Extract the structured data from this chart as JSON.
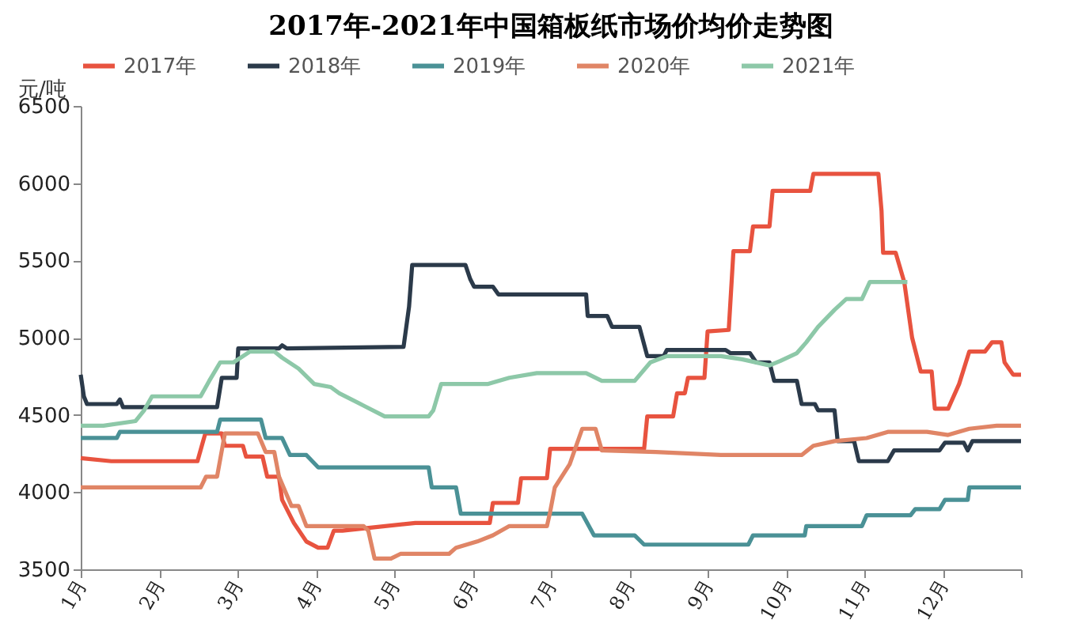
{
  "chart_data": {
    "type": "line",
    "title": "2017年-2021年中国箱板纸市场价均价走势图",
    "ylabel": "元/吨",
    "xlim": [
      1,
      13
    ],
    "xticks": [
      {
        "value": 1,
        "label": "1月"
      },
      {
        "value": 2,
        "label": "2月"
      },
      {
        "value": 3,
        "label": "3月"
      },
      {
        "value": 4,
        "label": "4月"
      },
      {
        "value": 5,
        "label": "5月"
      },
      {
        "value": 6,
        "label": "6月"
      },
      {
        "value": 7,
        "label": "7月"
      },
      {
        "value": 8,
        "label": "8月"
      },
      {
        "value": 9,
        "label": "9月"
      },
      {
        "value": 10,
        "label": "10月"
      },
      {
        "value": 11,
        "label": "11月"
      },
      {
        "value": 12,
        "label": "12月"
      },
      {
        "value": 13,
        "label": null
      }
    ],
    "ylim": [
      3500,
      6500
    ],
    "yticks": [
      3500,
      4000,
      4500,
      5000,
      5500,
      6000,
      6500
    ],
    "grid": false,
    "legend": "top",
    "line_style": "solid",
    "marker": "none",
    "series": [
      {
        "name": "2017年",
        "color": "#e8533f",
        "x": [
          1.0,
          1.39,
          2.49,
          2.59,
          2.8,
          2.84,
          3.07,
          3.11,
          3.32,
          3.38,
          3.53,
          3.57,
          3.72,
          3.88,
          4.03,
          4.15,
          4.23,
          4.34,
          5.27,
          6.22,
          6.26,
          6.58,
          6.62,
          6.95,
          6.99,
          8.19,
          8.23,
          8.56,
          8.61,
          8.71,
          8.75,
          8.96,
          9.0,
          9.27,
          9.33,
          9.54,
          9.58,
          9.79,
          9.83,
          10.31,
          10.35,
          11.18,
          11.22,
          11.24,
          11.4,
          11.51,
          11.61,
          11.72,
          11.86,
          11.9,
          12.07,
          12.21,
          12.34,
          12.54,
          12.63,
          12.75,
          12.79,
          12.9,
          13.0
        ],
        "values": [
          4220,
          4200,
          4200,
          4380,
          4380,
          4300,
          4300,
          4230,
          4230,
          4100,
          4100,
          3950,
          3800,
          3680,
          3640,
          3640,
          3750,
          3750,
          3800,
          3800,
          3930,
          3930,
          4090,
          4090,
          4280,
          4280,
          4490,
          4490,
          4640,
          4640,
          4740,
          4740,
          5040,
          5050,
          5560,
          5560,
          5720,
          5720,
          5950,
          5950,
          6060,
          6060,
          5820,
          5550,
          5550,
          5360,
          5000,
          4780,
          4780,
          4540,
          4540,
          4700,
          4910,
          4910,
          4970,
          4970,
          4840,
          4760,
          4760
        ]
      },
      {
        "name": "2018年",
        "color": "#2b3a4a",
        "x": [
          1.0,
          1.04,
          1.08,
          1.46,
          1.5,
          1.54,
          2.74,
          2.8,
          2.99,
          3.01,
          3.53,
          3.57,
          3.63,
          5.12,
          5.19,
          5.23,
          5.91,
          5.97,
          6.02,
          6.26,
          6.33,
          7.45,
          7.47,
          7.72,
          7.78,
          8.13,
          8.23,
          8.44,
          8.48,
          9.23,
          9.29,
          9.54,
          9.62,
          9.79,
          9.85,
          10.14,
          10.2,
          10.37,
          10.41,
          10.62,
          10.66,
          10.87,
          10.93,
          11.3,
          11.38,
          11.96,
          12.03,
          12.27,
          12.32,
          12.38,
          13.0
        ],
        "values": [
          4760,
          4620,
          4570,
          4570,
          4600,
          4550,
          4550,
          4740,
          4740,
          4930,
          4930,
          4950,
          4930,
          4940,
          5200,
          5470,
          5470,
          5380,
          5330,
          5330,
          5280,
          5280,
          5140,
          5140,
          5070,
          5070,
          4880,
          4880,
          4920,
          4920,
          4900,
          4900,
          4840,
          4840,
          4720,
          4720,
          4570,
          4570,
          4530,
          4530,
          4330,
          4330,
          4200,
          4200,
          4270,
          4270,
          4320,
          4320,
          4270,
          4330,
          4330
        ]
      },
      {
        "name": "2019年",
        "color": "#4a9196",
        "x": [
          1.0,
          1.46,
          1.5,
          2.74,
          2.78,
          3.3,
          3.36,
          3.57,
          3.67,
          3.88,
          4.03,
          5.44,
          5.48,
          5.79,
          5.85,
          7.4,
          7.55,
          8.07,
          8.19,
          9.52,
          9.58,
          10.24,
          10.26,
          10.97,
          11.03,
          11.59,
          11.65,
          11.96,
          12.03,
          12.32,
          12.34,
          13.0
        ],
        "values": [
          4350,
          4350,
          4390,
          4390,
          4470,
          4470,
          4350,
          4350,
          4240,
          4240,
          4160,
          4160,
          4030,
          4030,
          3860,
          3860,
          3720,
          3720,
          3660,
          3660,
          3720,
          3720,
          3780,
          3780,
          3850,
          3850,
          3890,
          3890,
          3950,
          3950,
          4030,
          4030
        ]
      },
      {
        "name": "2020年",
        "color": "#e08566",
        "x": [
          1.0,
          2.53,
          2.6,
          2.74,
          2.84,
          3.26,
          3.36,
          3.47,
          3.53,
          3.69,
          3.78,
          3.88,
          4.61,
          4.67,
          4.75,
          4.96,
          5.08,
          5.7,
          5.79,
          6.06,
          6.26,
          6.47,
          6.95,
          6.99,
          7.05,
          7.24,
          7.4,
          7.57,
          7.65,
          8.34,
          9.17,
          9.93,
          10.2,
          10.35,
          10.62,
          11.03,
          11.3,
          11.8,
          12.07,
          12.34,
          12.69,
          13.0
        ],
        "values": [
          4030,
          4030,
          4100,
          4100,
          4380,
          4380,
          4260,
          4260,
          4100,
          3910,
          3910,
          3780,
          3780,
          3750,
          3570,
          3570,
          3600,
          3600,
          3640,
          3680,
          3720,
          3780,
          3780,
          3870,
          4030,
          4180,
          4410,
          4410,
          4270,
          4260,
          4240,
          4240,
          4240,
          4300,
          4330,
          4350,
          4390,
          4390,
          4370,
          4410,
          4430,
          4430
        ]
      },
      {
        "name": "2021年",
        "color": "#8dc8a8",
        "x": [
          1.0,
          1.29,
          1.7,
          1.81,
          1.91,
          2.53,
          2.64,
          2.78,
          2.95,
          3.16,
          3.47,
          3.57,
          3.78,
          3.98,
          4.19,
          4.3,
          4.61,
          4.88,
          5.44,
          5.5,
          5.6,
          6.2,
          6.47,
          6.82,
          7.45,
          7.65,
          8.07,
          8.27,
          8.48,
          9.17,
          9.44,
          9.79,
          9.93,
          10.14,
          10.26,
          10.41,
          10.62,
          10.77,
          10.97,
          11.07,
          11.55
        ],
        "values": [
          4430,
          4430,
          4460,
          4530,
          4620,
          4620,
          4720,
          4840,
          4840,
          4910,
          4910,
          4870,
          4800,
          4700,
          4680,
          4640,
          4560,
          4490,
          4490,
          4530,
          4700,
          4700,
          4740,
          4770,
          4770,
          4720,
          4720,
          4840,
          4880,
          4880,
          4860,
          4820,
          4850,
          4900,
          4970,
          5070,
          5180,
          5250,
          5250,
          5360,
          5360
        ]
      }
    ]
  }
}
